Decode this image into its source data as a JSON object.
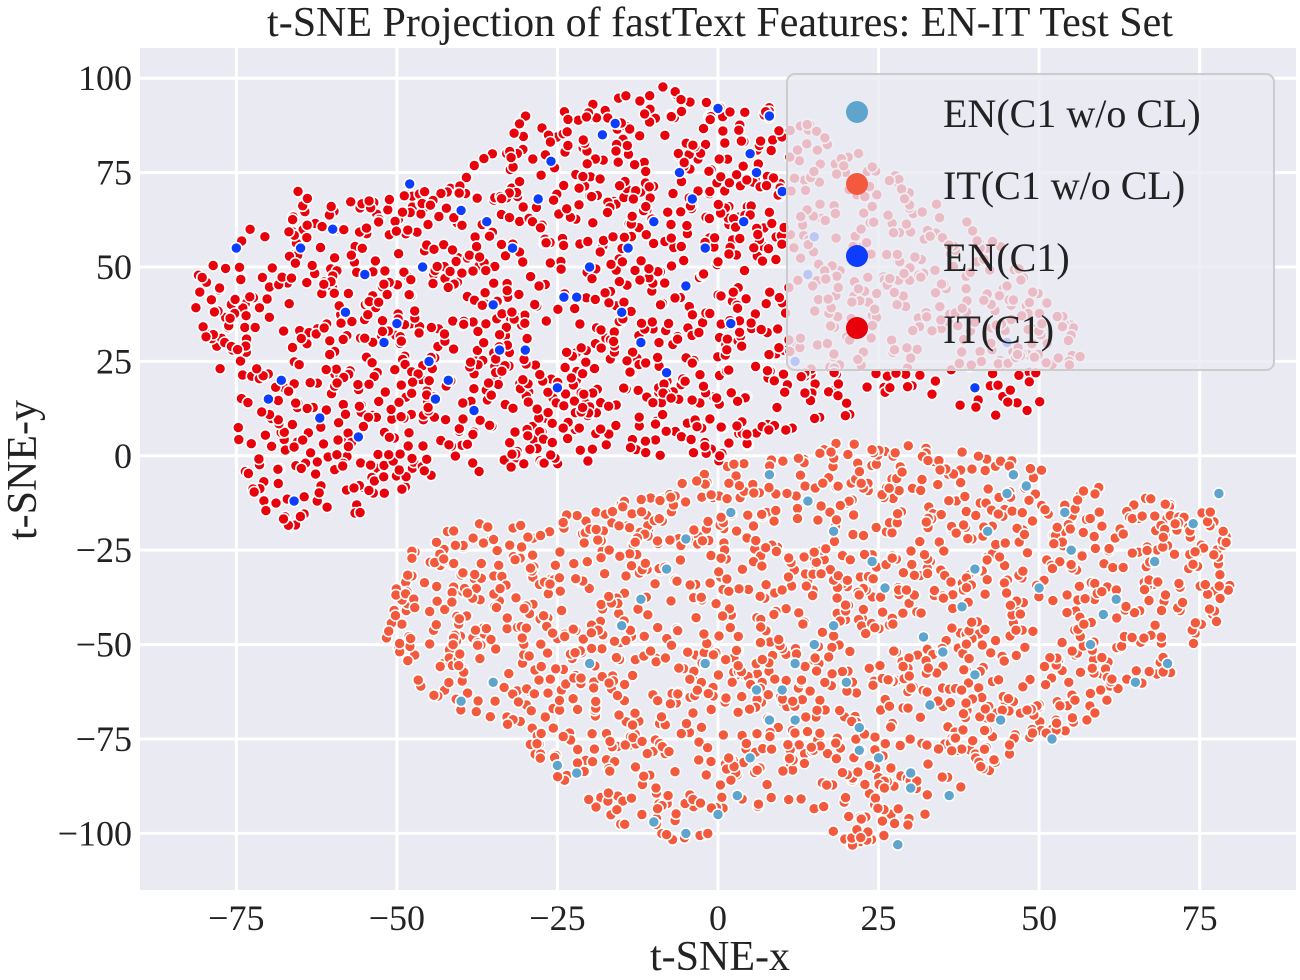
{
  "chart_data": {
    "type": "scatter",
    "title": "t-SNE Projection of fastText Features: EN-IT Test Set",
    "xlabel": "t-SNE-x",
    "ylabel": "t-SNE-y",
    "xlim": [
      -90,
      90
    ],
    "ylim": [
      -115,
      108
    ],
    "xticks": [
      -75,
      -50,
      -25,
      0,
      25,
      50,
      75
    ],
    "yticks": [
      100,
      75,
      50,
      25,
      0,
      -25,
      -50,
      -75,
      -100
    ],
    "xtick_labels": [
      "−75",
      "−50",
      "−25",
      "0",
      "25",
      "50",
      "75"
    ],
    "ytick_labels": [
      "100",
      "75",
      "50",
      "25",
      "0",
      "−25",
      "−50",
      "−75",
      "−100"
    ],
    "grid": true,
    "legend_position": "top-right",
    "background": "#eaeaf2",
    "series": [
      {
        "name": "EN(C1 w/o CL)",
        "color": "#5ea4cc",
        "x": [
          -25,
          -22,
          -10,
          -5,
          0,
          3,
          5,
          8,
          10,
          12,
          15,
          18,
          20,
          22,
          25,
          28,
          30,
          33,
          35,
          38,
          40,
          42,
          45,
          48,
          50,
          55,
          60,
          65,
          70,
          78,
          -40,
          -35,
          -20,
          -15,
          -12,
          -8,
          -5,
          2,
          8,
          14,
          18,
          24,
          26,
          32,
          40,
          44,
          52,
          58,
          62,
          68,
          74,
          -2,
          6,
          12,
          22,
          30,
          36,
          46,
          54
        ],
        "y": [
          -82,
          -84,
          -97,
          -100,
          -95,
          -90,
          -80,
          -70,
          -62,
          -55,
          -50,
          -45,
          -60,
          -72,
          -80,
          -103,
          -88,
          -66,
          -52,
          -40,
          -30,
          -20,
          -10,
          -8,
          -35,
          -25,
          -42,
          -60,
          -55,
          -10,
          -65,
          -60,
          -55,
          -45,
          -38,
          -30,
          -22,
          -15,
          -5,
          -12,
          -20,
          -28,
          -35,
          -48,
          -58,
          -70,
          -75,
          -50,
          -38,
          -28,
          -18,
          -55,
          -62,
          -70,
          -78,
          -84,
          -90,
          -5,
          -15
        ]
      },
      {
        "name": "IT(C1 w/o CL)",
        "color": "#f2593d",
        "region": [
          [
            -50,
            -27
          ],
          [
            -40,
            -18
          ],
          [
            -20,
            -15
          ],
          [
            0,
            -3
          ],
          [
            20,
            4
          ],
          [
            40,
            2
          ],
          [
            60,
            -8
          ],
          [
            78,
            -15
          ],
          [
            82,
            -35
          ],
          [
            70,
            -60
          ],
          [
            55,
            -72
          ],
          [
            40,
            -88
          ],
          [
            22,
            -105
          ],
          [
            10,
            -90
          ],
          [
            -5,
            -103
          ],
          [
            -15,
            -100
          ],
          [
            -25,
            -85
          ],
          [
            -35,
            -72
          ],
          [
            -45,
            -65
          ],
          [
            -52,
            -50
          ]
        ],
        "count": 1500
      },
      {
        "name": "EN(C1)",
        "color": "#0d3dfc",
        "x": [
          -70,
          -68,
          -65,
          -60,
          -55,
          -50,
          -45,
          -40,
          -35,
          -30,
          -25,
          -20,
          -15,
          -10,
          -5,
          0,
          5,
          10,
          15,
          -75,
          -62,
          -52,
          -48,
          -42,
          -38,
          -32,
          -28,
          -22,
          -18,
          -12,
          -8,
          -2,
          2,
          8,
          12,
          40,
          45,
          -66,
          -58,
          -46,
          -36,
          -26,
          -16,
          -6,
          4,
          14,
          -56,
          -44,
          -34,
          -24,
          -14,
          -4,
          6
        ],
        "y": [
          15,
          20,
          55,
          60,
          48,
          35,
          25,
          65,
          40,
          28,
          18,
          50,
          38,
          62,
          45,
          92,
          80,
          70,
          58,
          55,
          10,
          30,
          72,
          20,
          12,
          55,
          68,
          42,
          85,
          30,
          22,
          55,
          35,
          90,
          25,
          18,
          30,
          -12,
          38,
          50,
          62,
          78,
          88,
          75,
          62,
          48,
          5,
          15,
          28,
          42,
          55,
          68,
          75
        ]
      },
      {
        "name": "IT(C1)",
        "color": "#e8000b",
        "region": [
          [
            -83,
            46
          ],
          [
            -75,
            55
          ],
          [
            -68,
            72
          ],
          [
            -55,
            68
          ],
          [
            -40,
            75
          ],
          [
            -30,
            90
          ],
          [
            -20,
            95
          ],
          [
            -10,
            98
          ],
          [
            0,
            96
          ],
          [
            10,
            92
          ],
          [
            20,
            82
          ],
          [
            30,
            72
          ],
          [
            45,
            55
          ],
          [
            55,
            38
          ],
          [
            58,
            25
          ],
          [
            50,
            12
          ],
          [
            42,
            10
          ],
          [
            30,
            18
          ],
          [
            20,
            10
          ],
          [
            10,
            5
          ],
          [
            0,
            -2
          ],
          [
            -10,
            0
          ],
          [
            -25,
            -3
          ],
          [
            -40,
            -5
          ],
          [
            -55,
            -15
          ],
          [
            -65,
            -20
          ],
          [
            -72,
            -15
          ],
          [
            -78,
            25
          ],
          [
            -82,
            38
          ]
        ],
        "count": 1500
      }
    ]
  }
}
